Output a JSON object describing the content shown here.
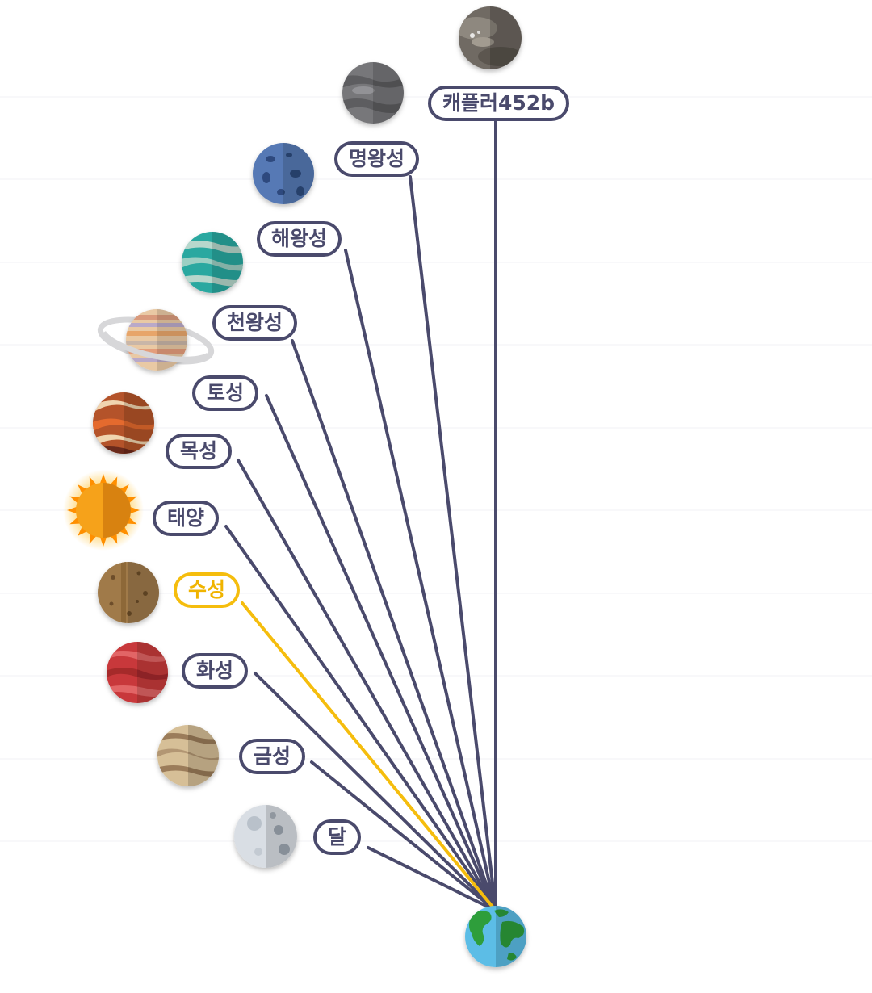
{
  "origin": {
    "id": "earth",
    "name": "지구",
    "icon": "earth-icon"
  },
  "colors": {
    "line": "#4a4a6c",
    "active": "#f5bd0d",
    "bg": "#ffffff"
  },
  "active": "mercury",
  "bodies": [
    {
      "id": "kepler452b",
      "label": "캐플러452b",
      "icon": "kepler-452b-icon"
    },
    {
      "id": "pluto",
      "label": "명왕성",
      "icon": "pluto-icon"
    },
    {
      "id": "neptune",
      "label": "해왕성",
      "icon": "neptune-icon"
    },
    {
      "id": "uranus",
      "label": "천왕성",
      "icon": "uranus-icon"
    },
    {
      "id": "saturn",
      "label": "토성",
      "icon": "saturn-icon"
    },
    {
      "id": "jupiter",
      "label": "목성",
      "icon": "jupiter-icon"
    },
    {
      "id": "sun",
      "label": "태양",
      "icon": "sun-icon"
    },
    {
      "id": "mercury",
      "label": "수성",
      "icon": "mercury-icon"
    },
    {
      "id": "mars",
      "label": "화성",
      "icon": "mars-icon"
    },
    {
      "id": "venus",
      "label": "금성",
      "icon": "venus-icon"
    },
    {
      "id": "moon",
      "label": "달",
      "icon": "moon-icon"
    }
  ]
}
